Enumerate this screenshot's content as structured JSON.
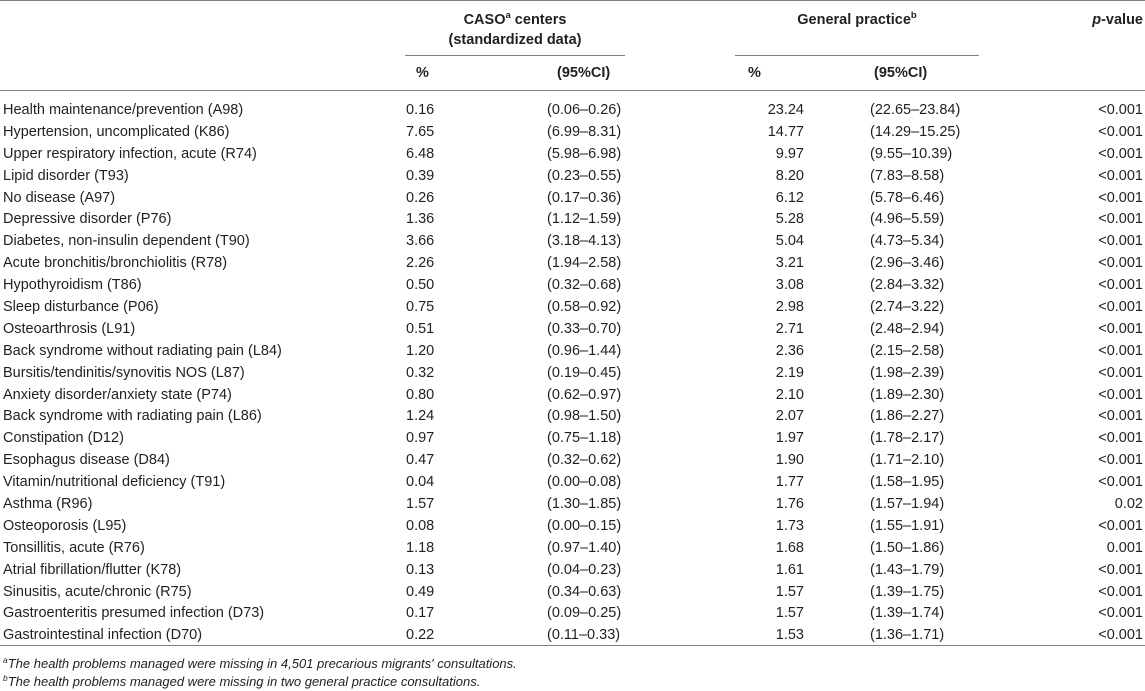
{
  "header": {
    "caso_title_line1": "CASO",
    "caso_sup": "a",
    "caso_title_line1_rest": " centers",
    "caso_title_line2": "(standardized data)",
    "gp_title": "General practice",
    "gp_sup": "b",
    "pvalue_italic": "p",
    "pvalue_rest": "-value",
    "sub_pct_1": "%",
    "sub_ci_1": "(95%CI)",
    "sub_pct_2": "%",
    "sub_ci_2": "(95%CI)"
  },
  "rows": [
    {
      "name": "Health maintenance/prevention (A98)",
      "caso_pct": "0.16",
      "caso_ci": "(0.06–0.26)",
      "gp_pct": "23.24",
      "gp_ci": "(22.65–23.84)",
      "p": "<0.001"
    },
    {
      "name": "Hypertension, uncomplicated (K86)",
      "caso_pct": "7.65",
      "caso_ci": "(6.99–8.31)",
      "gp_pct": "14.77",
      "gp_ci": "(14.29–15.25)",
      "p": "<0.001"
    },
    {
      "name": "Upper respiratory infection, acute (R74)",
      "caso_pct": "6.48",
      "caso_ci": "(5.98–6.98)",
      "gp_pct": "9.97",
      "gp_ci": "(9.55–10.39)",
      "p": "<0.001"
    },
    {
      "name": "Lipid disorder (T93)",
      "caso_pct": "0.39",
      "caso_ci": "(0.23–0.55)",
      "gp_pct": "8.20",
      "gp_ci": "(7.83–8.58)",
      "p": "<0.001"
    },
    {
      "name": "No disease (A97)",
      "caso_pct": "0.26",
      "caso_ci": "(0.17–0.36)",
      "gp_pct": "6.12",
      "gp_ci": "(5.78–6.46)",
      "p": "<0.001"
    },
    {
      "name": "Depressive disorder (P76)",
      "caso_pct": "1.36",
      "caso_ci": "(1.12–1.59)",
      "gp_pct": "5.28",
      "gp_ci": "(4.96–5.59)",
      "p": "<0.001"
    },
    {
      "name": "Diabetes, non-insulin dependent (T90)",
      "caso_pct": "3.66",
      "caso_ci": "(3.18–4.13)",
      "gp_pct": "5.04",
      "gp_ci": "(4.73–5.34)",
      "p": "<0.001"
    },
    {
      "name": "Acute bronchitis/bronchiolitis (R78)",
      "caso_pct": "2.26",
      "caso_ci": "(1.94–2.58)",
      "gp_pct": "3.21",
      "gp_ci": "(2.96–3.46)",
      "p": "<0.001"
    },
    {
      "name": "Hypothyroidism (T86)",
      "caso_pct": "0.50",
      "caso_ci": "(0.32–0.68)",
      "gp_pct": "3.08",
      "gp_ci": "(2.84–3.32)",
      "p": "<0.001"
    },
    {
      "name": "Sleep disturbance (P06)",
      "caso_pct": "0.75",
      "caso_ci": "(0.58–0.92)",
      "gp_pct": "2.98",
      "gp_ci": "(2.74–3.22)",
      "p": "<0.001"
    },
    {
      "name": "Osteoarthrosis (L91)",
      "caso_pct": "0.51",
      "caso_ci": "(0.33–0.70)",
      "gp_pct": "2.71",
      "gp_ci": "(2.48–2.94)",
      "p": "<0.001"
    },
    {
      "name": "Back syndrome without radiating pain (L84)",
      "caso_pct": "1.20",
      "caso_ci": "(0.96–1.44)",
      "gp_pct": "2.36",
      "gp_ci": "(2.15–2.58)",
      "p": "<0.001"
    },
    {
      "name": "Bursitis/tendinitis/synovitis NOS (L87)",
      "caso_pct": "0.32",
      "caso_ci": "(0.19–0.45)",
      "gp_pct": "2.19",
      "gp_ci": "(1.98–2.39)",
      "p": "<0.001"
    },
    {
      "name": "Anxiety disorder/anxiety state (P74)",
      "caso_pct": "0.80",
      "caso_ci": "(0.62–0.97)",
      "gp_pct": "2.10",
      "gp_ci": "(1.89–2.30)",
      "p": "<0.001"
    },
    {
      "name": "Back syndrome with radiating pain (L86)",
      "caso_pct": "1.24",
      "caso_ci": "(0.98–1.50)",
      "gp_pct": "2.07",
      "gp_ci": "(1.86–2.27)",
      "p": "<0.001"
    },
    {
      "name": "Constipation (D12)",
      "caso_pct": "0.97",
      "caso_ci": "(0.75–1.18)",
      "gp_pct": "1.97",
      "gp_ci": "(1.78–2.17)",
      "p": "<0.001"
    },
    {
      "name": "Esophagus disease (D84)",
      "caso_pct": "0.47",
      "caso_ci": "(0.32–0.62)",
      "gp_pct": "1.90",
      "gp_ci": "(1.71–2.10)",
      "p": "<0.001"
    },
    {
      "name": "Vitamin/nutritional deficiency (T91)",
      "caso_pct": "0.04",
      "caso_ci": "(0.00–0.08)",
      "gp_pct": "1.77",
      "gp_ci": "(1.58–1.95)",
      "p": "<0.001"
    },
    {
      "name": "Asthma (R96)",
      "caso_pct": "1.57",
      "caso_ci": "(1.30–1.85)",
      "gp_pct": "1.76",
      "gp_ci": "(1.57–1.94)",
      "p": "0.02"
    },
    {
      "name": "Osteoporosis (L95)",
      "caso_pct": "0.08",
      "caso_ci": "(0.00–0.15)",
      "gp_pct": "1.73",
      "gp_ci": "(1.55–1.91)",
      "p": "<0.001"
    },
    {
      "name": "Tonsillitis, acute (R76)",
      "caso_pct": "1.18",
      "caso_ci": "(0.97–1.40)",
      "gp_pct": "1.68",
      "gp_ci": "(1.50–1.86)",
      "p": "0.001"
    },
    {
      "name": "Atrial fibrillation/flutter (K78)",
      "caso_pct": "0.13",
      "caso_ci": "(0.04–0.23)",
      "gp_pct": "1.61",
      "gp_ci": "(1.43–1.79)",
      "p": "<0.001"
    },
    {
      "name": "Sinusitis, acute/chronic (R75)",
      "caso_pct": "0.49",
      "caso_ci": "(0.34–0.63)",
      "gp_pct": "1.57",
      "gp_ci": "(1.39–1.75)",
      "p": "<0.001"
    },
    {
      "name": "Gastroenteritis presumed infection (D73)",
      "caso_pct": "0.17",
      "caso_ci": "(0.09–0.25)",
      "gp_pct": "1.57",
      "gp_ci": "(1.39–1.74)",
      "p": "<0.001"
    },
    {
      "name": "Gastrointestinal infection (D70)",
      "caso_pct": "0.22",
      "caso_ci": "(0.11–0.33)",
      "gp_pct": "1.53",
      "gp_ci": "(1.36–1.71)",
      "p": "<0.001"
    }
  ],
  "footnotes": [
    {
      "sup": "a",
      "text": "The health problems managed were missing in 4,501 precarious migrants' consultations."
    },
    {
      "sup": "b",
      "text": "The health problems managed were missing in two general practice consultations."
    }
  ]
}
